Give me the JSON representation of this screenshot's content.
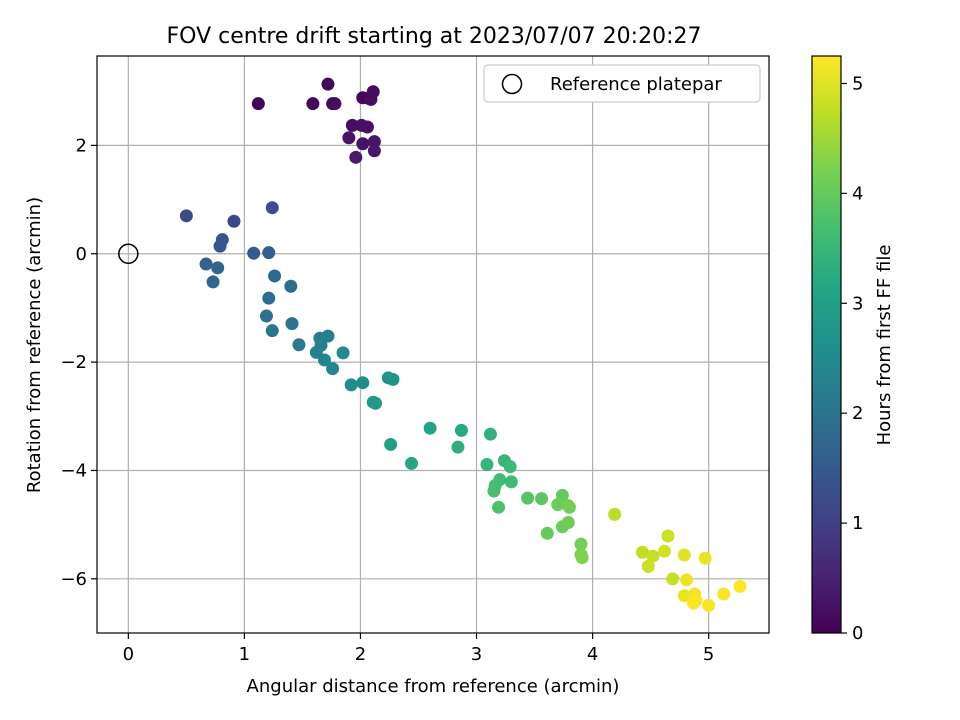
{
  "chart_data": {
    "type": "scatter",
    "title": "FOV centre drift starting at 2023/07/07 20:20:27",
    "xlabel": "Angular distance from reference (arcmin)",
    "ylabel": "Rotation from reference (arcmin)",
    "xlim": [
      -0.27,
      5.52
    ],
    "ylim": [
      -7.0,
      3.65
    ],
    "xticks": [
      0,
      1,
      2,
      3,
      4,
      5
    ],
    "yticks": [
      -6,
      -4,
      -2,
      0,
      2
    ],
    "grid": true,
    "legend": {
      "placement": "upper right",
      "entries": [
        "Reference platepar"
      ]
    },
    "reference_point": {
      "x": 0,
      "y": 0,
      "label": "Reference platepar"
    },
    "colorbar": {
      "label": "Hours from first FF file",
      "range": [
        0,
        5.25
      ],
      "ticks": [
        0,
        1,
        2,
        3,
        4,
        5
      ],
      "colormap": "viridis"
    },
    "points": [
      {
        "x": 1.12,
        "y": 2.77,
        "t": 0.05
      },
      {
        "x": 1.59,
        "y": 2.77,
        "t": 0.08
      },
      {
        "x": 1.72,
        "y": 3.13,
        "t": 0.1
      },
      {
        "x": 1.76,
        "y": 2.77,
        "t": 0.12
      },
      {
        "x": 1.78,
        "y": 2.77,
        "t": 0.15
      },
      {
        "x": 2.02,
        "y": 2.88,
        "t": 0.1
      },
      {
        "x": 2.07,
        "y": 2.87,
        "t": 0.12
      },
      {
        "x": 2.11,
        "y": 2.99,
        "t": 0.15
      },
      {
        "x": 2.09,
        "y": 2.85,
        "t": 0.18
      },
      {
        "x": 1.93,
        "y": 2.37,
        "t": 0.2
      },
      {
        "x": 2.01,
        "y": 2.37,
        "t": 0.22
      },
      {
        "x": 2.06,
        "y": 2.34,
        "t": 0.25
      },
      {
        "x": 1.9,
        "y": 2.14,
        "t": 0.28
      },
      {
        "x": 2.02,
        "y": 2.03,
        "t": 0.3
      },
      {
        "x": 2.12,
        "y": 2.07,
        "t": 0.32
      },
      {
        "x": 2.12,
        "y": 1.9,
        "t": 0.35
      },
      {
        "x": 1.96,
        "y": 1.78,
        "t": 0.38
      },
      {
        "x": 0.5,
        "y": 0.7,
        "t": 1.25
      },
      {
        "x": 0.91,
        "y": 0.6,
        "t": 1.15
      },
      {
        "x": 1.24,
        "y": 0.85,
        "t": 1.3
      },
      {
        "x": 0.81,
        "y": 0.26,
        "t": 1.35
      },
      {
        "x": 0.79,
        "y": 0.14,
        "t": 1.4
      },
      {
        "x": 1.08,
        "y": 0.01,
        "t": 1.5
      },
      {
        "x": 1.21,
        "y": 0.02,
        "t": 1.6
      },
      {
        "x": 0.67,
        "y": -0.19,
        "t": 1.65
      },
      {
        "x": 0.77,
        "y": -0.26,
        "t": 1.7
      },
      {
        "x": 0.73,
        "y": -0.52,
        "t": 1.75
      },
      {
        "x": 1.26,
        "y": -0.41,
        "t": 1.8
      },
      {
        "x": 1.4,
        "y": -0.6,
        "t": 1.85
      },
      {
        "x": 1.21,
        "y": -0.82,
        "t": 1.9
      },
      {
        "x": 1.19,
        "y": -1.15,
        "t": 1.95
      },
      {
        "x": 1.41,
        "y": -1.29,
        "t": 2.0
      },
      {
        "x": 1.24,
        "y": -1.42,
        "t": 2.05
      },
      {
        "x": 1.47,
        "y": -1.68,
        "t": 2.1
      },
      {
        "x": 1.65,
        "y": -1.56,
        "t": 2.2
      },
      {
        "x": 1.72,
        "y": -1.52,
        "t": 2.25
      },
      {
        "x": 1.66,
        "y": -1.69,
        "t": 2.3
      },
      {
        "x": 1.62,
        "y": -1.82,
        "t": 2.35
      },
      {
        "x": 1.69,
        "y": -1.96,
        "t": 2.4
      },
      {
        "x": 1.76,
        "y": -2.12,
        "t": 2.45
      },
      {
        "x": 1.85,
        "y": -1.83,
        "t": 2.5
      },
      {
        "x": 1.92,
        "y": -2.42,
        "t": 2.55
      },
      {
        "x": 2.02,
        "y": -2.38,
        "t": 2.6
      },
      {
        "x": 2.24,
        "y": -2.29,
        "t": 2.7
      },
      {
        "x": 2.28,
        "y": -2.32,
        "t": 2.75
      },
      {
        "x": 2.11,
        "y": -2.74,
        "t": 2.8
      },
      {
        "x": 2.13,
        "y": -2.76,
        "t": 2.85
      },
      {
        "x": 2.26,
        "y": -3.52,
        "t": 3.0
      },
      {
        "x": 2.6,
        "y": -3.22,
        "t": 3.1
      },
      {
        "x": 2.87,
        "y": -3.26,
        "t": 3.2
      },
      {
        "x": 2.44,
        "y": -3.87,
        "t": 3.15
      },
      {
        "x": 2.84,
        "y": -3.57,
        "t": 3.3
      },
      {
        "x": 3.12,
        "y": -3.33,
        "t": 3.35
      },
      {
        "x": 3.09,
        "y": -3.89,
        "t": 3.45
      },
      {
        "x": 3.24,
        "y": -3.82,
        "t": 3.5
      },
      {
        "x": 3.29,
        "y": -3.93,
        "t": 3.55
      },
      {
        "x": 3.2,
        "y": -4.17,
        "t": 3.6
      },
      {
        "x": 3.16,
        "y": -4.28,
        "t": 3.65
      },
      {
        "x": 3.3,
        "y": -4.21,
        "t": 3.6
      },
      {
        "x": 3.15,
        "y": -4.38,
        "t": 3.7
      },
      {
        "x": 3.19,
        "y": -4.68,
        "t": 3.75
      },
      {
        "x": 3.44,
        "y": -4.51,
        "t": 3.85
      },
      {
        "x": 3.56,
        "y": -4.52,
        "t": 3.9
      },
      {
        "x": 3.74,
        "y": -4.46,
        "t": 4.0
      },
      {
        "x": 3.7,
        "y": -4.63,
        "t": 4.05
      },
      {
        "x": 3.8,
        "y": -4.68,
        "t": 4.1
      },
      {
        "x": 3.79,
        "y": -4.65,
        "t": 4.15
      },
      {
        "x": 3.61,
        "y": -5.16,
        "t": 4.0
      },
      {
        "x": 3.74,
        "y": -5.04,
        "t": 4.05
      },
      {
        "x": 3.79,
        "y": -4.96,
        "t": 4.1
      },
      {
        "x": 3.9,
        "y": -5.36,
        "t": 4.15
      },
      {
        "x": 3.9,
        "y": -5.55,
        "t": 4.2
      },
      {
        "x": 3.91,
        "y": -5.61,
        "t": 4.25
      },
      {
        "x": 4.19,
        "y": -4.81,
        "t": 4.7
      },
      {
        "x": 4.43,
        "y": -5.51,
        "t": 4.75
      },
      {
        "x": 4.52,
        "y": -5.58,
        "t": 4.8
      },
      {
        "x": 4.48,
        "y": -5.77,
        "t": 4.85
      },
      {
        "x": 4.62,
        "y": -5.49,
        "t": 4.9
      },
      {
        "x": 4.65,
        "y": -5.21,
        "t": 4.85
      },
      {
        "x": 4.69,
        "y": -6.0,
        "t": 4.8
      },
      {
        "x": 4.79,
        "y": -5.56,
        "t": 5.0
      },
      {
        "x": 4.97,
        "y": -5.62,
        "t": 5.05
      },
      {
        "x": 4.81,
        "y": -6.02,
        "t": 5.1
      },
      {
        "x": 4.79,
        "y": -6.31,
        "t": 5.1
      },
      {
        "x": 4.88,
        "y": -6.28,
        "t": 5.15
      },
      {
        "x": 4.89,
        "y": -6.4,
        "t": 5.2
      },
      {
        "x": 4.87,
        "y": -6.45,
        "t": 5.2
      },
      {
        "x": 5.0,
        "y": -6.49,
        "t": 5.2
      },
      {
        "x": 5.13,
        "y": -6.28,
        "t": 5.2
      },
      {
        "x": 5.27,
        "y": -6.14,
        "t": 5.25
      }
    ]
  }
}
